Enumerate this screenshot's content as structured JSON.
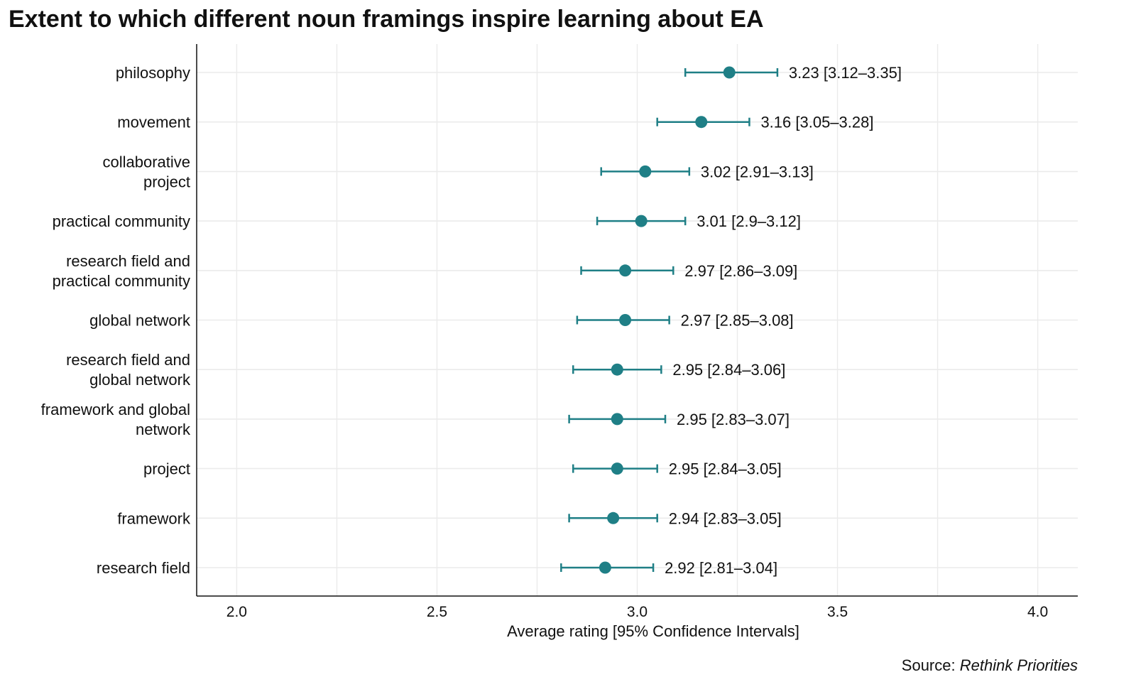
{
  "chart_data": {
    "type": "dot-errorbar",
    "title": "Extent to which different noun framings inspire learning about EA",
    "xlabel": "Average rating [95% Confidence Intervals]",
    "ylabel": "",
    "xlim": [
      1.9,
      4.1
    ],
    "xticks": [
      "2.0",
      "2.5",
      "3.0",
      "3.5",
      "4.0"
    ],
    "grid": true,
    "color": "#1f7f86",
    "source_prefix": "Source: ",
    "source_name": "Rethink Priorities",
    "rows": [
      {
        "label": [
          "philosophy"
        ],
        "mean": 3.23,
        "lo": 3.12,
        "hi": 3.35,
        "text": "3.23 [3.12–3.35]"
      },
      {
        "label": [
          "movement"
        ],
        "mean": 3.16,
        "lo": 3.05,
        "hi": 3.28,
        "text": "3.16 [3.05–3.28]"
      },
      {
        "label": [
          "collaborative",
          "project"
        ],
        "mean": 3.02,
        "lo": 2.91,
        "hi": 3.13,
        "text": "3.02 [2.91–3.13]"
      },
      {
        "label": [
          "practical community"
        ],
        "mean": 3.01,
        "lo": 2.9,
        "hi": 3.12,
        "text": "3.01 [2.9–3.12]"
      },
      {
        "label": [
          "research field and",
          "practical community"
        ],
        "mean": 2.97,
        "lo": 2.86,
        "hi": 3.09,
        "text": "2.97 [2.86–3.09]"
      },
      {
        "label": [
          "global network"
        ],
        "mean": 2.97,
        "lo": 2.85,
        "hi": 3.08,
        "text": "2.97 [2.85–3.08]"
      },
      {
        "label": [
          "research field and",
          "global network"
        ],
        "mean": 2.95,
        "lo": 2.84,
        "hi": 3.06,
        "text": "2.95 [2.84–3.06]"
      },
      {
        "label": [
          "framework and global",
          "network"
        ],
        "mean": 2.95,
        "lo": 2.83,
        "hi": 3.07,
        "text": "2.95 [2.83–3.07]"
      },
      {
        "label": [
          "project"
        ],
        "mean": 2.95,
        "lo": 2.84,
        "hi": 3.05,
        "text": "2.95 [2.84–3.05]"
      },
      {
        "label": [
          "framework"
        ],
        "mean": 2.94,
        "lo": 2.83,
        "hi": 3.05,
        "text": "2.94 [2.83–3.05]"
      },
      {
        "label": [
          "research field"
        ],
        "mean": 2.92,
        "lo": 2.81,
        "hi": 3.04,
        "text": "2.92 [2.81–3.04]"
      }
    ]
  }
}
